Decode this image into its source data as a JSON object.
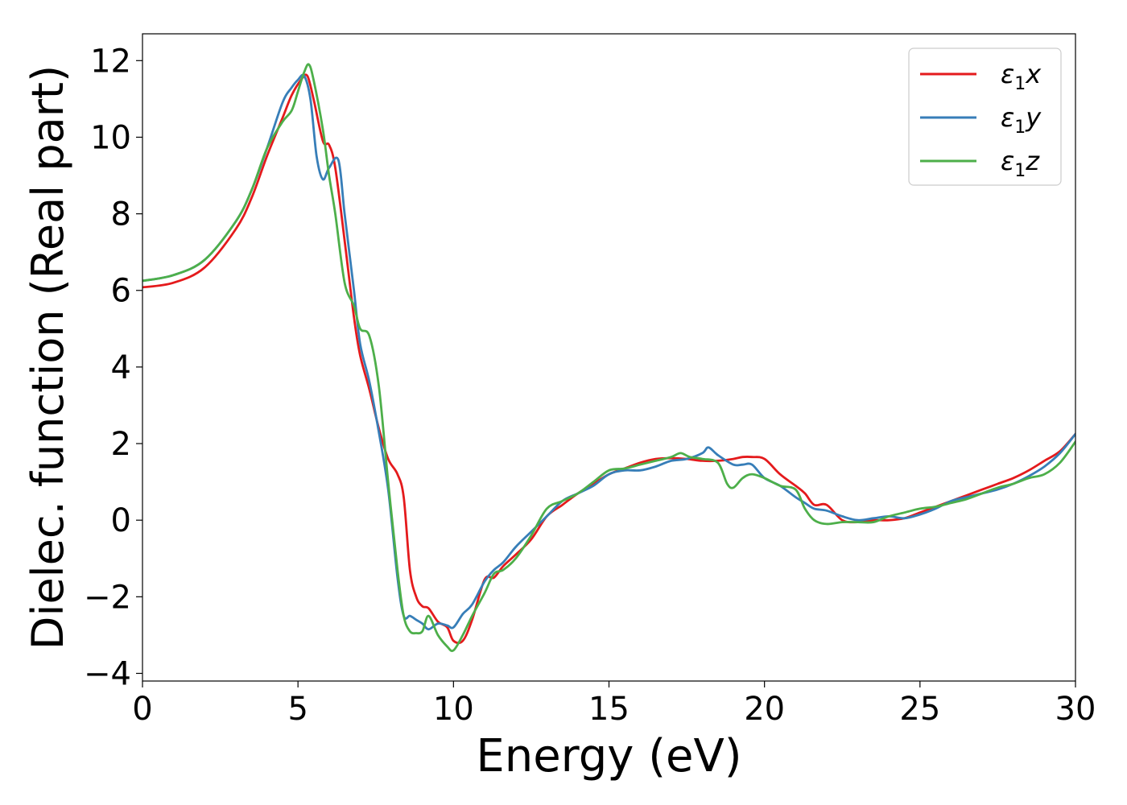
{
  "chart_data": {
    "type": "line",
    "title": "",
    "xlabel": "Energy (eV)",
    "ylabel": "Dielec. function (Real part)",
    "xlim": [
      0,
      30
    ],
    "ylim": [
      -4.2,
      12.7
    ],
    "xticks": [
      0,
      5,
      10,
      15,
      20,
      25,
      30
    ],
    "yticks": [
      -4,
      -2,
      0,
      2,
      4,
      6,
      8,
      10,
      12
    ],
    "xtick_labels": [
      "0",
      "5",
      "10",
      "15",
      "20",
      "25",
      "30"
    ],
    "ytick_labels": [
      "−4",
      "−2",
      "0",
      "2",
      "4",
      "6",
      "8",
      "10",
      "12"
    ],
    "grid": false,
    "legend": {
      "position": "top-right"
    },
    "series": [
      {
        "name": "ε₁x",
        "label_main": "ε",
        "label_sub": "1",
        "label_tail": "x",
        "color": "#e41a1c",
        "x": [
          0,
          1,
          2,
          3,
          3.5,
          4,
          4.5,
          4.8,
          5.1,
          5.3,
          5.5,
          5.8,
          6.0,
          6.2,
          6.5,
          6.8,
          7.0,
          7.3,
          7.6,
          7.9,
          8.2,
          8.4,
          8.6,
          8.8,
          9.0,
          9.2,
          9.5,
          9.8,
          10.0,
          10.3,
          10.6,
          11.0,
          11.3,
          11.6,
          12.0,
          12.5,
          13.0,
          13.5,
          14.0,
          14.5,
          15.0,
          15.5,
          16.0,
          16.5,
          17.0,
          17.5,
          18.0,
          18.5,
          19.0,
          19.3,
          19.6,
          20.0,
          20.5,
          21.0,
          21.3,
          21.6,
          22.0,
          22.5,
          23.0,
          23.5,
          24.0,
          24.5,
          25.0,
          25.5,
          26.0,
          26.5,
          27.0,
          27.5,
          28.0,
          28.5,
          29.0,
          29.5,
          30.0
        ],
        "values": [
          6.08,
          6.2,
          6.6,
          7.6,
          8.4,
          9.5,
          10.5,
          11.1,
          11.5,
          11.6,
          11.0,
          9.9,
          9.8,
          9.2,
          7.3,
          5.3,
          4.3,
          3.4,
          2.4,
          1.6,
          1.2,
          0.6,
          -1.3,
          -2.0,
          -2.25,
          -2.3,
          -2.65,
          -2.8,
          -3.15,
          -3.15,
          -2.6,
          -1.55,
          -1.5,
          -1.2,
          -0.9,
          -0.5,
          0.1,
          0.4,
          0.7,
          0.95,
          1.2,
          1.35,
          1.5,
          1.6,
          1.62,
          1.6,
          1.55,
          1.55,
          1.6,
          1.65,
          1.65,
          1.6,
          1.2,
          0.9,
          0.7,
          0.4,
          0.4,
          0.0,
          -0.05,
          0.0,
          0.0,
          0.05,
          0.2,
          0.35,
          0.5,
          0.65,
          0.8,
          0.95,
          1.1,
          1.3,
          1.55,
          1.8,
          2.25
        ]
      },
      {
        "name": "ε₁y",
        "label_main": "ε",
        "label_sub": "1",
        "label_tail": "y",
        "color": "#377eb8",
        "x": [
          0,
          1,
          2,
          3,
          3.5,
          4,
          4.5,
          4.8,
          5.0,
          5.2,
          5.4,
          5.6,
          5.8,
          6.0,
          6.3,
          6.5,
          6.8,
          7.0,
          7.3,
          7.6,
          7.9,
          8.2,
          8.4,
          8.6,
          8.8,
          9.0,
          9.2,
          9.5,
          9.8,
          10.0,
          10.3,
          10.6,
          11.0,
          11.3,
          11.6,
          12.0,
          12.5,
          13.0,
          13.5,
          14.0,
          14.5,
          15.0,
          15.5,
          16.0,
          16.5,
          17.0,
          17.5,
          18.0,
          18.2,
          18.5,
          19.0,
          19.3,
          19.6,
          20.0,
          20.5,
          21.0,
          21.3,
          21.6,
          22.0,
          22.5,
          23.0,
          23.5,
          24.0,
          24.5,
          25.0,
          25.5,
          26.0,
          26.5,
          27.0,
          27.5,
          28.0,
          28.5,
          29.0,
          29.5,
          30.0
        ],
        "values": [
          6.25,
          6.4,
          6.8,
          7.8,
          8.6,
          9.7,
          10.9,
          11.3,
          11.5,
          11.6,
          11.0,
          9.5,
          8.9,
          9.2,
          9.4,
          8.0,
          6.0,
          4.6,
          3.6,
          2.3,
          0.8,
          -1.5,
          -2.5,
          -2.5,
          -2.6,
          -2.7,
          -2.85,
          -2.7,
          -2.75,
          -2.8,
          -2.45,
          -2.2,
          -1.6,
          -1.3,
          -1.1,
          -0.7,
          -0.3,
          0.1,
          0.5,
          0.7,
          0.9,
          1.2,
          1.3,
          1.3,
          1.4,
          1.55,
          1.6,
          1.75,
          1.9,
          1.7,
          1.45,
          1.45,
          1.45,
          1.1,
          0.9,
          0.6,
          0.45,
          0.3,
          0.25,
          0.1,
          0.0,
          0.05,
          0.1,
          0.05,
          0.15,
          0.3,
          0.5,
          0.6,
          0.7,
          0.8,
          0.95,
          1.15,
          1.4,
          1.75,
          2.25
        ]
      },
      {
        "name": "ε₁z",
        "label_main": "ε",
        "label_sub": "1",
        "label_tail": "z",
        "color": "#4daf4a",
        "x": [
          0,
          1,
          2,
          3,
          3.5,
          4,
          4.5,
          4.8,
          5.0,
          5.2,
          5.35,
          5.5,
          5.8,
          6.0,
          6.2,
          6.5,
          6.8,
          7.0,
          7.3,
          7.6,
          7.9,
          8.2,
          8.4,
          8.6,
          8.8,
          9.0,
          9.2,
          9.5,
          9.8,
          10.0,
          10.3,
          10.6,
          11.0,
          11.3,
          11.6,
          12.0,
          12.5,
          13.0,
          13.5,
          14.0,
          14.5,
          15.0,
          15.5,
          16.0,
          16.5,
          17.0,
          17.3,
          17.6,
          18.0,
          18.5,
          18.8,
          19.0,
          19.3,
          19.6,
          20.0,
          20.5,
          21.0,
          21.3,
          21.6,
          22.0,
          22.5,
          23.0,
          23.5,
          24.0,
          24.5,
          25.0,
          25.5,
          26.0,
          26.5,
          27.0,
          27.5,
          28.0,
          28.5,
          29.0,
          29.5,
          30.0
        ],
        "values": [
          6.25,
          6.4,
          6.8,
          7.8,
          8.6,
          9.7,
          10.4,
          10.7,
          11.2,
          11.7,
          11.9,
          11.5,
          10.2,
          9.0,
          8.0,
          6.2,
          5.6,
          5.0,
          4.8,
          3.5,
          1.0,
          -1.3,
          -2.5,
          -2.9,
          -2.95,
          -2.9,
          -2.5,
          -3.0,
          -3.3,
          -3.4,
          -3.0,
          -2.5,
          -1.9,
          -1.4,
          -1.3,
          -1.0,
          -0.4,
          0.3,
          0.5,
          0.7,
          1.0,
          1.3,
          1.35,
          1.45,
          1.55,
          1.65,
          1.75,
          1.65,
          1.6,
          1.5,
          0.95,
          0.85,
          1.1,
          1.2,
          1.1,
          0.9,
          0.8,
          0.3,
          0.0,
          -0.1,
          -0.05,
          -0.05,
          -0.05,
          0.1,
          0.2,
          0.3,
          0.35,
          0.45,
          0.55,
          0.7,
          0.85,
          0.95,
          1.1,
          1.2,
          1.5,
          2.05
        ]
      }
    ]
  }
}
